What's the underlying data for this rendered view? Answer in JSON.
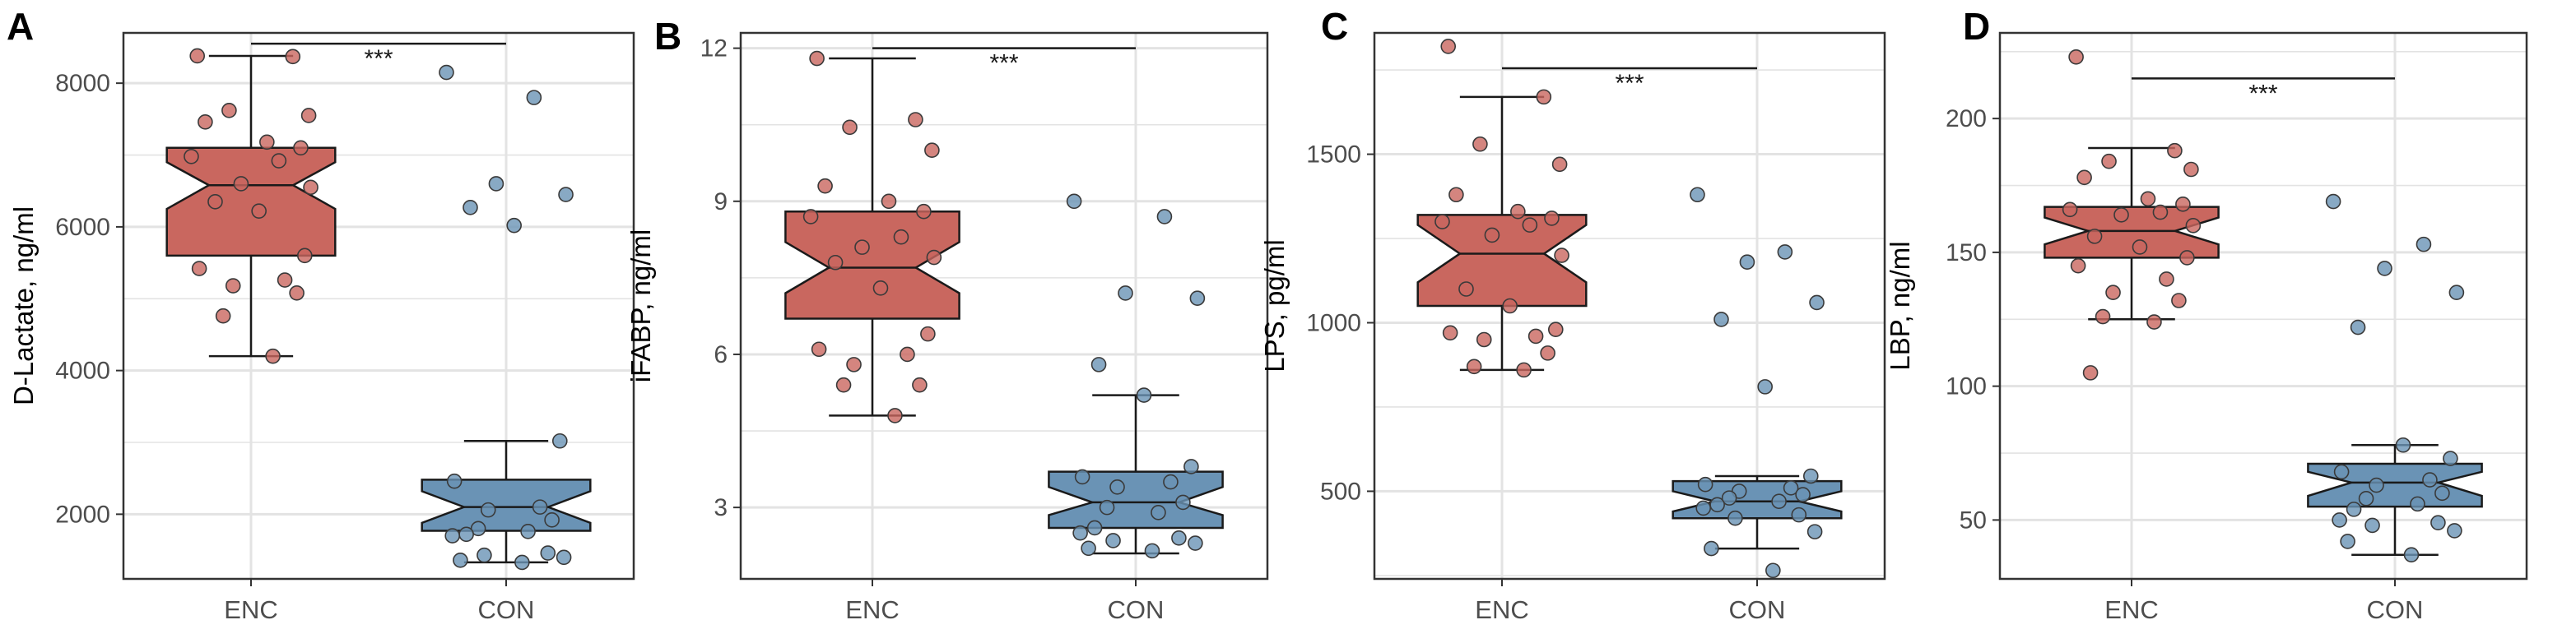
{
  "chart_data": [
    {
      "panel": "A",
      "type": "box",
      "ylabel": "D-Lactate, ng/ml",
      "categories": [
        "ENC",
        "CON"
      ],
      "ylim": [
        1100,
        8700
      ],
      "yticks": [
        2000,
        4000,
        6000,
        8000
      ],
      "significance": "***",
      "sig_y": 8550,
      "colors": {
        "ENC": "#c9675f",
        "CON": "#6a93b5"
      },
      "boxes": [
        {
          "name": "ENC",
          "whisker_low": 4200,
          "q1": 5600,
          "median": 6580,
          "q3": 7100,
          "whisker_high": 8380,
          "notch_low": 6250,
          "notch_high": 6900
        },
        {
          "name": "CON",
          "whisker_low": 1330,
          "q1": 1770,
          "median": 2100,
          "q3": 2480,
          "whisker_high": 3020,
          "notch_low": 1880,
          "notch_high": 2320
        }
      ],
      "points": [
        {
          "group": "ENC",
          "values": [
            8380,
            8370,
            7620,
            7550,
            7460,
            7180,
            7100,
            6980,
            6920,
            6600,
            6550,
            6350,
            6220,
            5600,
            5420,
            5260,
            5180,
            5080,
            4760,
            4200
          ]
        },
        {
          "group": "CON",
          "values": [
            8150,
            7800,
            6600,
            6450,
            6270,
            6020,
            3020,
            2460,
            2100,
            2060,
            1920,
            1800,
            1760,
            1720,
            1700,
            1460,
            1430,
            1400,
            1360,
            1330
          ]
        }
      ]
    },
    {
      "panel": "B",
      "type": "box",
      "ylabel": "iFABP, ng/ml",
      "categories": [
        "ENC",
        "CON"
      ],
      "ylim": [
        1.6,
        12.3
      ],
      "yticks": [
        3,
        6,
        9,
        12
      ],
      "significance": "***",
      "sig_y": 12.0,
      "colors": {
        "ENC": "#c9675f",
        "CON": "#6a93b5"
      },
      "boxes": [
        {
          "name": "ENC",
          "whisker_low": 4.8,
          "q1": 6.7,
          "median": 7.7,
          "q3": 8.8,
          "whisker_high": 11.8,
          "notch_low": 7.2,
          "notch_high": 8.2
        },
        {
          "name": "CON",
          "whisker_low": 2.1,
          "q1": 2.6,
          "median": 3.1,
          "q3": 3.7,
          "whisker_high": 5.2,
          "notch_low": 2.85,
          "notch_high": 3.4
        }
      ],
      "points": [
        {
          "group": "ENC",
          "values": [
            11.8,
            10.6,
            10.45,
            10.0,
            9.3,
            9.0,
            8.8,
            8.7,
            8.3,
            8.1,
            7.9,
            7.8,
            7.3,
            6.4,
            6.1,
            6.0,
            5.8,
            5.4,
            5.4,
            4.8
          ]
        },
        {
          "group": "CON",
          "values": [
            9.0,
            8.7,
            7.2,
            7.1,
            5.8,
            5.2,
            3.8,
            3.6,
            3.5,
            3.4,
            3.1,
            3.0,
            2.9,
            2.6,
            2.5,
            2.4,
            2.35,
            2.3,
            2.2,
            2.15
          ]
        }
      ]
    },
    {
      "panel": "C",
      "type": "box",
      "ylabel": "LPS, pg/ml",
      "categories": [
        "ENC",
        "CON"
      ],
      "ylim": [
        240,
        1860
      ],
      "yticks": [
        500,
        1000,
        1500
      ],
      "significance": "***",
      "sig_y": 1755,
      "colors": {
        "ENC": "#c9675f",
        "CON": "#6a93b5"
      },
      "boxes": [
        {
          "name": "ENC",
          "whisker_low": 860,
          "q1": 1050,
          "median": 1205,
          "q3": 1320,
          "whisker_high": 1670,
          "notch_low": 1120,
          "notch_high": 1290
        },
        {
          "name": "CON",
          "whisker_low": 330,
          "q1": 420,
          "median": 470,
          "q3": 530,
          "whisker_high": 545,
          "notch_low": 440,
          "notch_high": 500
        }
      ],
      "points": [
        {
          "group": "ENC",
          "values": [
            1820,
            1670,
            1530,
            1470,
            1380,
            1330,
            1310,
            1300,
            1290,
            1260,
            1200,
            1100,
            1050,
            980,
            970,
            960,
            950,
            910,
            870,
            860
          ]
        },
        {
          "group": "CON",
          "values": [
            1380,
            1210,
            1180,
            1060,
            1010,
            810,
            545,
            520,
            510,
            500,
            490,
            480,
            470,
            460,
            450,
            430,
            420,
            380,
            330,
            265
          ]
        }
      ]
    },
    {
      "panel": "D",
      "type": "box",
      "ylabel": "LBP, ng/ml",
      "categories": [
        "ENC",
        "CON"
      ],
      "ylim": [
        28,
        232
      ],
      "yticks": [
        50,
        100,
        150,
        200
      ],
      "significance": "***",
      "sig_y": 215,
      "colors": {
        "ENC": "#c9675f",
        "CON": "#6a93b5"
      },
      "boxes": [
        {
          "name": "ENC",
          "whisker_low": 125,
          "q1": 148,
          "median": 158,
          "q3": 167,
          "whisker_high": 189,
          "notch_low": 153,
          "notch_high": 163
        },
        {
          "name": "CON",
          "whisker_low": 37,
          "q1": 55,
          "median": 64,
          "q3": 71,
          "whisker_high": 78,
          "notch_low": 59,
          "notch_high": 68
        }
      ],
      "points": [
        {
          "group": "ENC",
          "values": [
            223,
            188,
            184,
            181,
            178,
            170,
            168,
            166,
            165,
            164,
            160,
            156,
            152,
            148,
            145,
            140,
            135,
            132,
            126,
            124,
            105
          ]
        },
        {
          "group": "CON",
          "values": [
            169,
            153,
            144,
            135,
            122,
            78,
            73,
            68,
            65,
            63,
            60,
            58,
            56,
            54,
            50,
            49,
            48,
            46,
            42,
            37
          ]
        }
      ]
    }
  ]
}
